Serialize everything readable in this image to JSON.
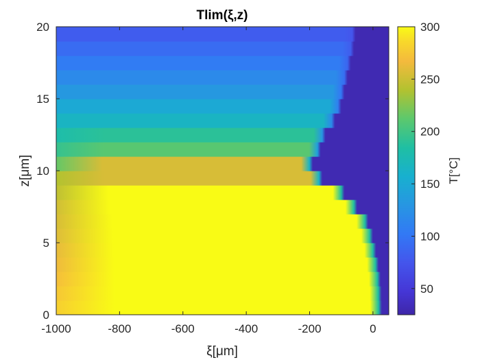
{
  "chart_data": {
    "type": "heatmap",
    "title": "Tlim(ξ,z)",
    "xlabel": "ξ[μm]",
    "ylabel": "z[μm]",
    "colorbar_label": "T[°C]",
    "xlim": [
      -1000,
      50
    ],
    "ylim": [
      0,
      20
    ],
    "clim": [
      25,
      300
    ],
    "colormap": "parula",
    "x_ticks": [
      -1000,
      -800,
      -600,
      -400,
      -200,
      0
    ],
    "x_tick_labels": [
      "-1000",
      "-800",
      "-600",
      "-400",
      "-200",
      "0"
    ],
    "y_ticks": [
      0,
      5,
      10,
      15,
      20
    ],
    "y_tick_labels": [
      "0",
      "5",
      "10",
      "15",
      "20"
    ],
    "colorbar_ticks": [
      50,
      100,
      150,
      200,
      250,
      300
    ],
    "colorbar_tick_labels": [
      "50",
      "100",
      "150",
      "200",
      "250",
      "300"
    ],
    "z_bands": {
      "band_height": 1,
      "rows": [
        {
          "z": [
            0,
            1
          ],
          "front_x": 28,
          "t_left": 280,
          "t_plateau": 300
        },
        {
          "z": [
            1,
            2
          ],
          "front_x": 27,
          "t_left": 275,
          "t_plateau": 300
        },
        {
          "z": [
            2,
            3
          ],
          "front_x": 24,
          "t_left": 270,
          "t_plateau": 300
        },
        {
          "z": [
            3,
            4
          ],
          "front_x": 18,
          "t_left": 265,
          "t_plateau": 300
        },
        {
          "z": [
            4,
            5
          ],
          "front_x": 10,
          "t_left": 262,
          "t_plateau": 300
        },
        {
          "z": [
            5,
            6
          ],
          "front_x": 0,
          "t_left": 258,
          "t_plateau": 300
        },
        {
          "z": [
            6,
            7
          ],
          "front_x": -15,
          "t_left": 255,
          "t_plateau": 300
        },
        {
          "z": [
            7,
            8
          ],
          "front_x": -50,
          "t_left": 252,
          "t_plateau": 300
        },
        {
          "z": [
            8,
            9
          ],
          "front_x": -90,
          "t_left": 245,
          "t_plateau": 300
        },
        {
          "z": [
            9,
            10
          ],
          "front_x": -160,
          "t_left": 240,
          "t_plateau": 255
        },
        {
          "z": [
            10,
            11
          ],
          "front_x": -190,
          "t_left": 215,
          "t_plateau": 255
        },
        {
          "z": [
            11,
            12
          ],
          "front_x": -165,
          "t_left": 195,
          "t_plateau": 210
        },
        {
          "z": [
            12,
            13
          ],
          "front_x": -150,
          "t_left": 180,
          "t_plateau": 190
        },
        {
          "z": [
            13,
            14
          ],
          "front_x": -120,
          "t_left": 165,
          "t_plateau": 165
        },
        {
          "z": [
            14,
            15
          ],
          "front_x": -100,
          "t_left": 150,
          "t_plateau": 150
        },
        {
          "z": [
            15,
            16
          ],
          "front_x": -90,
          "t_left": 132,
          "t_plateau": 132
        },
        {
          "z": [
            16,
            17
          ],
          "front_x": -80,
          "t_left": 118,
          "t_plateau": 118
        },
        {
          "z": [
            17,
            18
          ],
          "front_x": -70,
          "t_left": 105,
          "t_plateau": 105
        },
        {
          "z": [
            18,
            19
          ],
          "front_x": -60,
          "t_left": 92,
          "t_plateau": 92
        },
        {
          "z": [
            19,
            20
          ],
          "front_x": -55,
          "t_left": 80,
          "t_plateau": 80
        }
      ],
      "background_t": 30
    }
  }
}
